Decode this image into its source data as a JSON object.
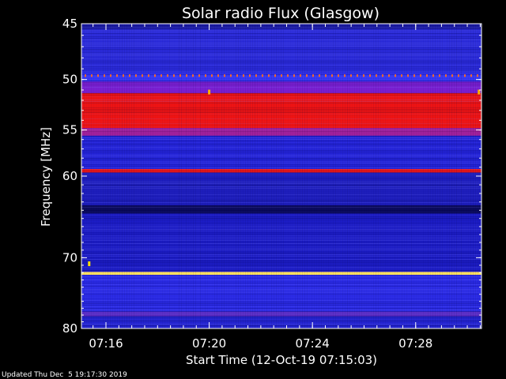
{
  "chart_data": {
    "type": "heatmap",
    "title": "Solar radio Flux (Glasgow)",
    "ylabel": "Frequency [MHz]",
    "xlabel": "Start Time (12-Oct-19 07:15:03)",
    "footer": "Updated Thu Dec  5 19:17:30 2019",
    "x_range_minutes": [
      0,
      15.5
    ],
    "y_range_mhz": [
      45,
      80
    ],
    "y_scale": "log",
    "x_ticks": [
      {
        "label": "07:16",
        "minute": 0.95
      },
      {
        "label": "07:20",
        "minute": 4.95
      },
      {
        "label": "07:24",
        "minute": 8.95
      },
      {
        "label": "07:28",
        "minute": 12.95
      }
    ],
    "y_ticks": [
      {
        "label": "45",
        "mhz": 45
      },
      {
        "label": "50",
        "mhz": 50
      },
      {
        "label": "55",
        "mhz": 55
      },
      {
        "label": "60",
        "mhz": 60
      },
      {
        "label": "70",
        "mhz": 70
      },
      {
        "label": "80",
        "mhz": 80
      }
    ],
    "bands": [
      {
        "from_mhz": 45.0,
        "to_mhz": 45.5,
        "color": "#1a1aa0"
      },
      {
        "from_mhz": 45.5,
        "to_mhz": 49.3,
        "color": "#2a2ad8"
      },
      {
        "from_mhz": 49.3,
        "to_mhz": 50.2,
        "color": "#3333f2"
      },
      {
        "from_mhz": 50.2,
        "to_mhz": 51.3,
        "color": "#7a1fd0"
      },
      {
        "from_mhz": 51.3,
        "to_mhz": 54.8,
        "color": "#ee1414"
      },
      {
        "from_mhz": 54.8,
        "to_mhz": 55.6,
        "color": "#a0209a"
      },
      {
        "from_mhz": 55.6,
        "to_mhz": 59.2,
        "color": "#2424d8"
      },
      {
        "from_mhz": 59.2,
        "to_mhz": 59.6,
        "color": "#f01818"
      },
      {
        "from_mhz": 59.6,
        "to_mhz": 63.4,
        "color": "#1e1ebc"
      },
      {
        "from_mhz": 63.4,
        "to_mhz": 64.4,
        "color": "#0a0a5a"
      },
      {
        "from_mhz": 64.4,
        "to_mhz": 71.9,
        "color": "#1c1cc4"
      },
      {
        "from_mhz": 71.9,
        "to_mhz": 72.3,
        "color": "#ffe060"
      },
      {
        "from_mhz": 72.3,
        "to_mhz": 77.5,
        "color": "#2a2ae4"
      },
      {
        "from_mhz": 77.5,
        "to_mhz": 78.2,
        "color": "#5a28c0"
      },
      {
        "from_mhz": 78.2,
        "to_mhz": 80.0,
        "color": "#2424d0"
      }
    ],
    "events": [
      {
        "minute": 0.3,
        "mhz": 70.8,
        "color": "#ffe000"
      },
      {
        "minute": 4.95,
        "mhz": 51.2,
        "color": "#ffb000"
      },
      {
        "minute": 15.4,
        "mhz": 51.2,
        "color": "#ffb000"
      }
    ],
    "dotted_line_mhz": 49.6,
    "colors": {
      "background": "#000000",
      "axis": "#ffffff"
    }
  }
}
